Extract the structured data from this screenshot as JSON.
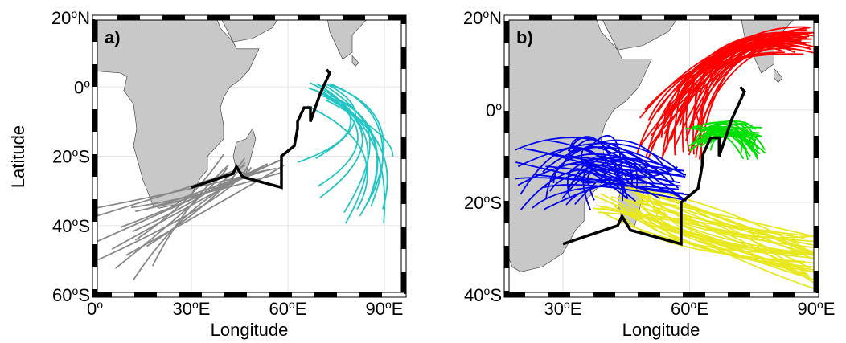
{
  "panels": [
    {
      "label": "a)",
      "lat_ticks": [
        {
          "number": "20",
          "degree": "o",
          "hemisphere": "N"
        },
        {
          "number": "0",
          "degree": "o"
        },
        {
          "number": "20",
          "degree": "o",
          "hemisphere": "S"
        },
        {
          "number": "40",
          "degree": "o",
          "hemisphere": "S"
        },
        {
          "number": "60",
          "degree": "o",
          "hemisphere": "S"
        }
      ],
      "lon_ticks": [
        {
          "number": "0",
          "degree": "o"
        },
        {
          "number": "30",
          "degree": "o",
          "hemisphere": "E"
        },
        {
          "number": "60",
          "degree": "o",
          "hemisphere": "E"
        },
        {
          "number": "90",
          "degree": "o",
          "hemisphere": "E"
        }
      ]
    },
    {
      "label": "b)",
      "lat_ticks": [
        {
          "number": "20",
          "degree": "o",
          "hemisphere": "N"
        },
        {
          "number": "0",
          "degree": "o"
        },
        {
          "number": "20",
          "degree": "o",
          "hemisphere": "S"
        },
        {
          "number": "40",
          "degree": "o",
          "hemisphere": "S"
        }
      ],
      "lon_ticks": [
        {
          "number": "30",
          "degree": "o",
          "hemisphere": "E"
        },
        {
          "number": "60",
          "degree": "o",
          "hemisphere": "E"
        },
        {
          "number": "90",
          "degree": "o",
          "hemisphere": "E"
        }
      ]
    }
  ],
  "y_axis_label": "Latitude",
  "x_axis_label": "Longitude"
}
